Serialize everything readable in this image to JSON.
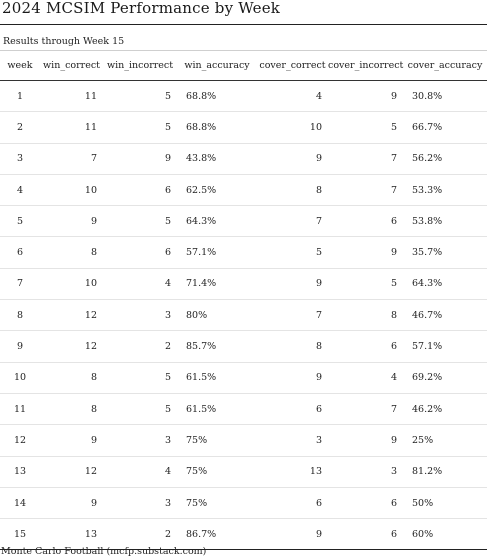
{
  "title": "2024 MCSIM Performance by Week",
  "subtitle": "Results through Week 15",
  "columns": [
    "week",
    "win_correct",
    "win_incorrect",
    "win_accuracy",
    "cover_correct",
    "cover_incorrect",
    "cover_accuracy"
  ],
  "rows": [
    [
      "1",
      "11",
      "5",
      "68.8%",
      "4",
      "9",
      "30.8%"
    ],
    [
      "2",
      "11",
      "5",
      "68.8%",
      "10",
      "5",
      "66.7%"
    ],
    [
      "3",
      "7",
      "9",
      "43.8%",
      "9",
      "7",
      "56.2%"
    ],
    [
      "4",
      "10",
      "6",
      "62.5%",
      "8",
      "7",
      "53.3%"
    ],
    [
      "5",
      "9",
      "5",
      "64.3%",
      "7",
      "6",
      "53.8%"
    ],
    [
      "6",
      "8",
      "6",
      "57.1%",
      "5",
      "9",
      "35.7%"
    ],
    [
      "7",
      "10",
      "4",
      "71.4%",
      "9",
      "5",
      "64.3%"
    ],
    [
      "8",
      "12",
      "3",
      "80%",
      "7",
      "8",
      "46.7%"
    ],
    [
      "9",
      "12",
      "2",
      "85.7%",
      "8",
      "6",
      "57.1%"
    ],
    [
      "10",
      "8",
      "5",
      "61.5%",
      "9",
      "4",
      "69.2%"
    ],
    [
      "11",
      "8",
      "5",
      "61.5%",
      "6",
      "7",
      "46.2%"
    ],
    [
      "12",
      "9",
      "3",
      "75%",
      "3",
      "9",
      "25%"
    ],
    [
      "13",
      "12",
      "4",
      "75%",
      "13",
      "3",
      "81.2%"
    ],
    [
      "14",
      "9",
      "3",
      "75%",
      "6",
      "6",
      "50%"
    ],
    [
      "15",
      "13",
      "2",
      "86.7%",
      "9",
      "6",
      "60%"
    ]
  ],
  "footer": "Monte Carlo Football (mcfp.substack.com)"
}
